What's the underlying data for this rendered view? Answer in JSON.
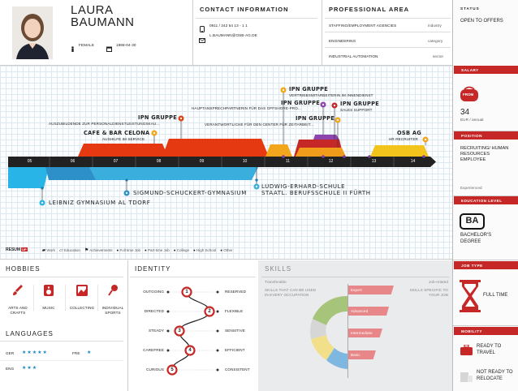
{
  "profile": {
    "first_name": "LAURA",
    "last_name": "BAUMANN",
    "gender": "FEMALE",
    "birthdate": "1988-04-30"
  },
  "contact": {
    "title": "CONTACT INFORMATION",
    "phone": "0911 / 242 54 13 - 1 1",
    "email": "L.BAUMANN@OSB-AG.DE"
  },
  "professional": {
    "title": "PROFESSIONAL AREA",
    "rows": [
      {
        "label": "STAFFING/EMPLOYMENT AGENCIES",
        "kind": "industry"
      },
      {
        "label": "ENGINEERING",
        "kind": "category"
      },
      {
        "label": "INDUSTRIAL AUTOMATION",
        "kind": "sector"
      }
    ]
  },
  "status": {
    "title": "STATUS",
    "value": "OPEN TO OFFERS"
  },
  "salary": {
    "title": "SALARY",
    "badge": "FROM",
    "amount": "34",
    "unit": "EUR / annual"
  },
  "position": {
    "title": "POSITION",
    "value": "RECRUITING/ HUMAN RESOURCES EMPLOYEE",
    "level": "Experienced"
  },
  "education_level": {
    "title": "EDUCATION LEVEL",
    "badge": "BA",
    "value": "BACHELOR'S DEGREE"
  },
  "job_type": {
    "title": "JOB TYPE",
    "value": "FULL TIME"
  },
  "mobility": {
    "title": "MOBILITY",
    "items": [
      {
        "label": "READY TO TRAVEL"
      },
      {
        "label": "NOT READY TO RELOCATE"
      }
    ]
  },
  "timeline": {
    "years": [
      "05",
      "06",
      "07",
      "08",
      "09",
      "10",
      "11",
      "12",
      "13",
      "14"
    ],
    "jobs": [
      {
        "company": "IPN GRUPPE",
        "role": "VERTRIEBSMITARBEITERIN IM INNENDIENST",
        "color": "#f2a61c"
      },
      {
        "company": "HAUPTANSPRECHPARTNERIN FÜR DAS OFFSHORE-PRO...",
        "role": "",
        "color": "#d84315"
      },
      {
        "company": "IPN GRUPPE",
        "role": "",
        "color": "#8e44ad"
      },
      {
        "company": "IPN GRUPPE",
        "role": "SALES SUPPORT",
        "color": "#c62828"
      },
      {
        "company": "IPN GRUPPE",
        "role": "AUSZUBILDENDE ZUR PERSONALDIENSTLEISTUNGSKAU...",
        "color": "#d84315"
      },
      {
        "company": "VERANTWORTLICHE FÜR DEN CENTER FÜR ZEITARBEIT...",
        "role": "",
        "color": "#f2a61c"
      },
      {
        "company": "IPN GRUPPE",
        "role": "",
        "color": "#f2a61c"
      },
      {
        "company": "CAFE & BAR CELONA",
        "role": "AUSHILFE IM SERVICE",
        "color": "#f2a61c"
      },
      {
        "company": "OSB AG",
        "role": "HR RECRUITER",
        "color": "#f2a61c"
      }
    ],
    "schools": [
      {
        "name": "LUDWIG-ERHARD-SCHULE",
        "sub": "STAATL. BERUFSSCHULE II FÜRTH"
      },
      {
        "name": "SIGMUND-SCHUCKERT-GYMNASIUM",
        "sub": ""
      },
      {
        "name": "LEIBNIZ GYMNASIUM AL TDORF",
        "sub": ""
      }
    ]
  },
  "legend": {
    "brand": "RESUM",
    "brand_badge": "UP",
    "items": [
      "Work",
      "Education",
      "Achievements",
      "Full time Job",
      "Part-time Job",
      "College",
      "High School",
      "Other"
    ]
  },
  "hobbies": {
    "title": "HOBBIES",
    "items": [
      "ARTS AND CRAFTS",
      "MUSIC",
      "COLLECTING",
      "INDIVIDUAL SPORTS"
    ]
  },
  "languages": {
    "title": "LANGUAGES",
    "items": [
      {
        "code": "GER",
        "stars": "★★★★★"
      },
      {
        "code": "FRE",
        "stars": "★"
      },
      {
        "code": "ENG",
        "stars": "★★★"
      }
    ]
  },
  "identity": {
    "title": "IDENTITY",
    "rows": [
      {
        "left": "OUTGOING",
        "right": "RESERVED",
        "n": "1"
      },
      {
        "left": "DIRECTED",
        "right": "FLEXIBLE",
        "n": "2"
      },
      {
        "left": "STEADY",
        "right": "SENSITIVE",
        "n": "3"
      },
      {
        "left": "CAREFREE",
        "right": "EFFICIENT",
        "n": "4"
      },
      {
        "left": "CURIOUS",
        "right": "CONSISTENT",
        "n": "5"
      }
    ]
  },
  "skills": {
    "title": "SKILLS",
    "left_head": "Transferable",
    "right_head": "Job-related",
    "left_desc": "SKILLS THAT CAN BE USED IN EVERY OCCUPATION",
    "right_desc": "SKILLS SPECIFIC TO YOUR JOB",
    "levels": [
      "Expert",
      "Advanced",
      "Intermediate",
      "Basic"
    ]
  },
  "colors": {
    "accent": "#c62828",
    "work_orange": "#f2a61c",
    "work_red": "#e53912",
    "edu_blue": "#29a0d8",
    "dark": "#222222"
  }
}
